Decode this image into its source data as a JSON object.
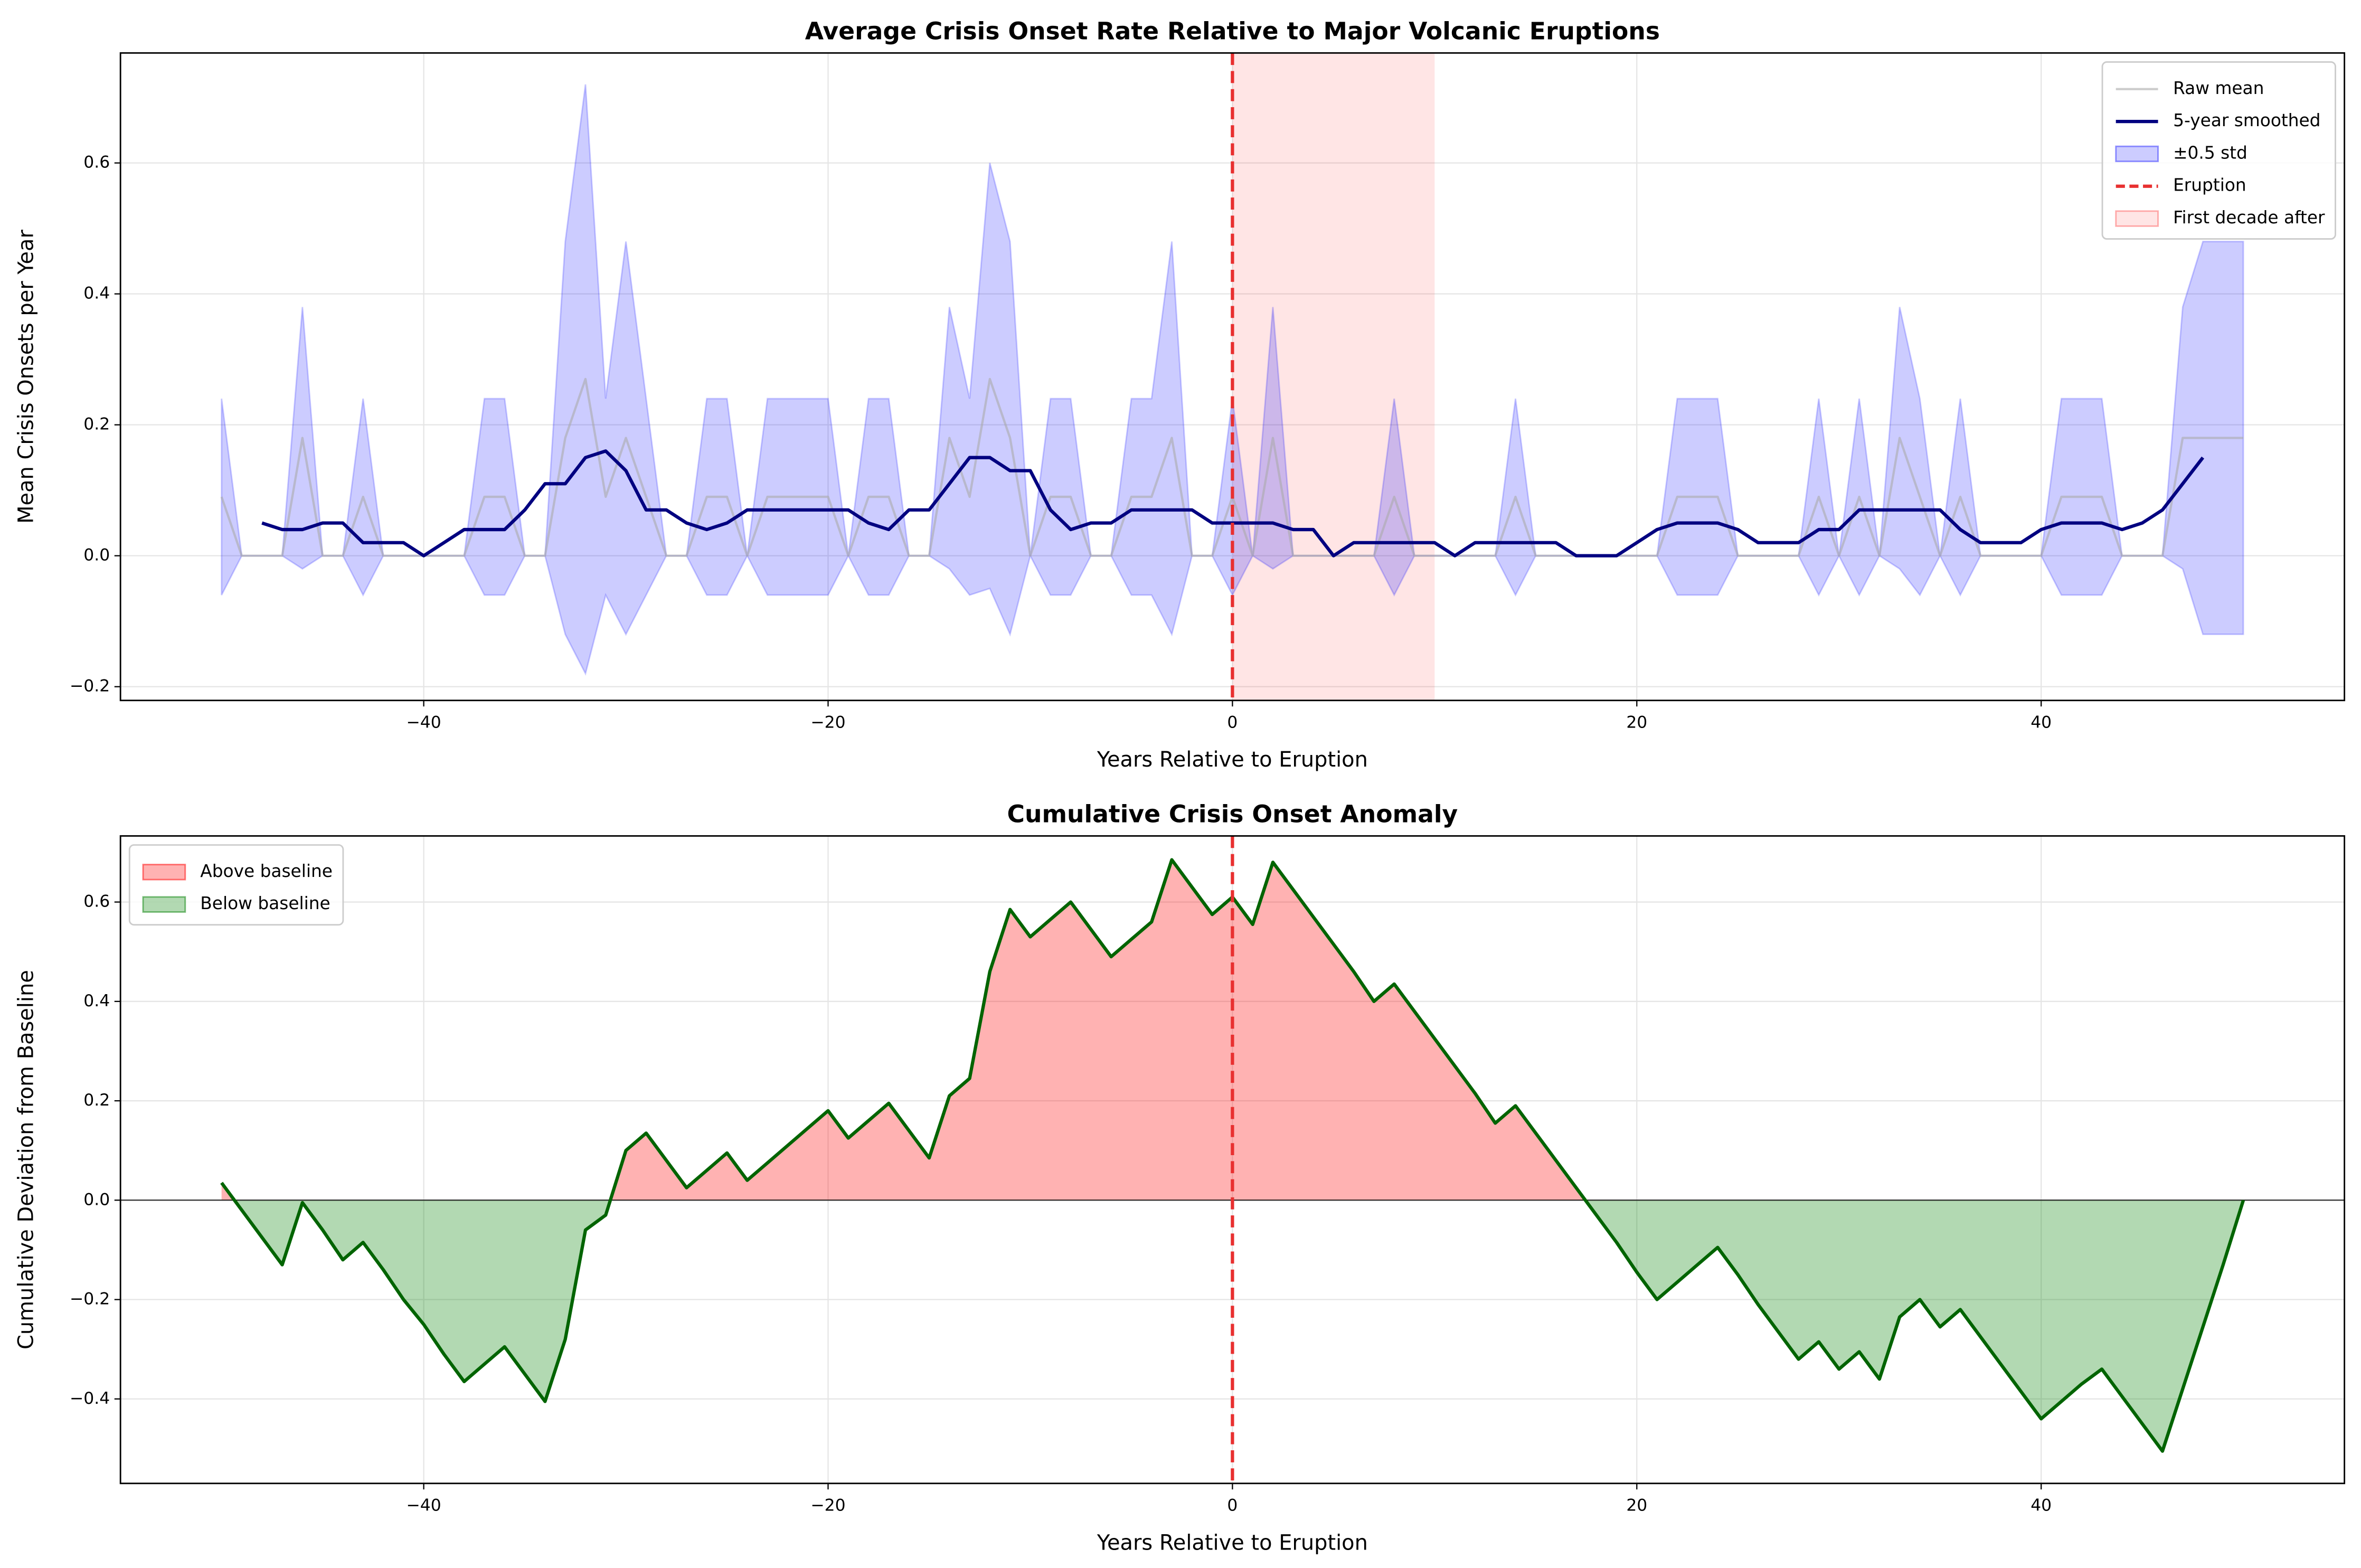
{
  "chart_data": [
    {
      "type": "line",
      "title": "Average Crisis Onset Rate Relative to Major Volcanic Eruptions",
      "xlabel": "Years Relative to Eruption",
      "ylabel": "Mean Crisis Onsets per Year",
      "x": [
        -50,
        -49,
        -48,
        -47,
        -46,
        -45,
        -44,
        -43,
        -42,
        -41,
        -40,
        -39,
        -38,
        -37,
        -36,
        -35,
        -34,
        -33,
        -32,
        -31,
        -30,
        -29,
        -28,
        -27,
        -26,
        -25,
        -24,
        -23,
        -22,
        -21,
        -20,
        -19,
        -18,
        -17,
        -16,
        -15,
        -14,
        -13,
        -12,
        -11,
        -10,
        -9,
        -8,
        -7,
        -6,
        -5,
        -4,
        -3,
        -2,
        -1,
        0,
        1,
        2,
        3,
        4,
        5,
        6,
        7,
        8,
        9,
        10,
        11,
        12,
        13,
        14,
        15,
        16,
        17,
        18,
        19,
        20,
        21,
        22,
        23,
        24,
        25,
        26,
        27,
        28,
        29,
        30,
        31,
        32,
        33,
        34,
        35,
        36,
        37,
        38,
        39,
        40,
        41,
        42,
        43,
        44,
        45,
        46,
        47,
        48,
        49,
        50
      ],
      "series": [
        {
          "name": "Raw mean",
          "color": "#aaaaaa",
          "values": [
            0.09,
            0,
            0,
            0,
            0.18,
            0,
            0,
            0.09,
            0,
            0,
            0,
            0,
            0,
            0.09,
            0.09,
            0,
            0,
            0.18,
            0.27,
            0.09,
            0.18,
            0.09,
            0,
            0,
            0.09,
            0.09,
            0,
            0.09,
            0.09,
            0.09,
            0.09,
            0,
            0.09,
            0.09,
            0,
            0,
            0.18,
            0.09,
            0.27,
            0.18,
            0,
            0.09,
            0.09,
            0,
            0,
            0.09,
            0.09,
            0.18,
            0,
            0,
            0.09,
            0,
            0.18,
            0,
            0,
            0,
            0,
            0,
            0.09,
            0,
            0,
            0,
            0,
            0,
            0.09,
            0,
            0,
            0,
            0,
            0,
            0,
            0,
            0.09,
            0.09,
            0.09,
            0,
            0,
            0,
            0,
            0.09,
            0,
            0.09,
            0,
            0.18,
            0.09,
            0,
            0.09,
            0,
            0,
            0,
            0,
            0.09,
            0.09,
            0.09,
            0,
            0,
            0,
            0.18,
            0.18,
            0.18,
            0.18
          ]
        },
        {
          "name": "5-year smoothed",
          "color": "#000080",
          "values": [
            null,
            null,
            0.05,
            0.04,
            0.04,
            0.05,
            0.05,
            0.02,
            0.02,
            0.02,
            0,
            0.02,
            0.04,
            0.04,
            0.04,
            0.07,
            0.11,
            0.11,
            0.15,
            0.16,
            0.13,
            0.07,
            0.07,
            0.05,
            0.04,
            0.05,
            0.07,
            0.07,
            0.07,
            0.07,
            0.07,
            0.07,
            0.05,
            0.04,
            0.07,
            0.07,
            0.11,
            0.15,
            0.15,
            0.13,
            0.13,
            0.07,
            0.04,
            0.05,
            0.05,
            0.07,
            0.07,
            0.07,
            0.07,
            0.05,
            0.05,
            0.05,
            0.05,
            0.04,
            0.04,
            0,
            0.02,
            0.02,
            0.02,
            0.02,
            0.02,
            0,
            0.02,
            0.02,
            0.02,
            0.02,
            0.02,
            0,
            0,
            0,
            0.02,
            0.04,
            0.05,
            0.05,
            0.05,
            0.04,
            0.02,
            0.02,
            0.02,
            0.04,
            0.04,
            0.07,
            0.07,
            0.07,
            0.07,
            0.07,
            0.04,
            0.02,
            0.02,
            0.02,
            0.04,
            0.05,
            0.05,
            0.05,
            0.04,
            0.05,
            0.07,
            0.11,
            0.15,
            null,
            null
          ]
        },
        {
          "name": "±0.5 std",
          "color": "#0000ff",
          "upper": [
            0.24,
            0,
            0,
            0,
            0.38,
            0,
            0,
            0.24,
            0,
            0,
            0,
            0,
            0,
            0.24,
            0.24,
            0,
            0,
            0.48,
            0.72,
            0.24,
            0.48,
            0.24,
            0,
            0,
            0.24,
            0.24,
            0,
            0.24,
            0.24,
            0.24,
            0.24,
            0,
            0.24,
            0.24,
            0,
            0,
            0.38,
            0.24,
            0.6,
            0.48,
            0,
            0.24,
            0.24,
            0,
            0,
            0.24,
            0.24,
            0.48,
            0,
            0,
            0.24,
            0,
            0.38,
            0,
            0,
            0,
            0,
            0,
            0.24,
            0,
            0,
            0,
            0,
            0,
            0.24,
            0,
            0,
            0,
            0,
            0,
            0,
            0,
            0.24,
            0.24,
            0.24,
            0,
            0,
            0,
            0,
            0.24,
            0,
            0.24,
            0,
            0.38,
            0.24,
            0,
            0.24,
            0,
            0,
            0,
            0,
            0.24,
            0.24,
            0.24,
            0,
            0,
            0,
            0.38,
            0.48,
            0.48,
            0.48
          ],
          "lower": [
            -0.06,
            0,
            0,
            0,
            -0.02,
            0,
            0,
            -0.06,
            0,
            0,
            0,
            0,
            0,
            -0.06,
            -0.06,
            0,
            0,
            -0.12,
            -0.18,
            -0.06,
            -0.12,
            -0.06,
            0,
            0,
            -0.06,
            -0.06,
            0,
            -0.06,
            -0.06,
            -0.06,
            -0.06,
            0,
            -0.06,
            -0.06,
            0,
            0,
            -0.02,
            -0.06,
            -0.05,
            -0.12,
            0,
            -0.06,
            -0.06,
            0,
            0,
            -0.06,
            -0.06,
            -0.12,
            0,
            0,
            -0.06,
            0,
            -0.02,
            0,
            0,
            0,
            0,
            0,
            -0.06,
            0,
            0,
            0,
            0,
            0,
            -0.06,
            0,
            0,
            0,
            0,
            0,
            0,
            0,
            -0.06,
            -0.06,
            -0.06,
            0,
            0,
            0,
            0,
            -0.06,
            0,
            -0.06,
            0,
            -0.02,
            -0.06,
            0,
            -0.06,
            0,
            0,
            0,
            0,
            -0.06,
            -0.06,
            -0.06,
            0,
            0,
            0,
            -0.02,
            -0.12,
            -0.12,
            -0.12
          ]
        }
      ],
      "vline": {
        "name": "Eruption",
        "value": 0,
        "color": "#e83030"
      },
      "span": {
        "name": "First decade after",
        "range": [
          0,
          10
        ],
        "color": "#ff0000"
      },
      "xlim": [
        -55,
        55
      ],
      "xticks": [
        {
          "value": -40,
          "label": "−40"
        },
        {
          "value": -20,
          "label": "−20"
        },
        0,
        20,
        40
      ],
      "ylim": [
        -0.221,
        0.768
      ],
      "yticks": [
        {
          "value": -0.2,
          "label": "−0.2"
        },
        {
          "value": 0,
          "label": "0.0"
        },
        0.2,
        0.4,
        0.6
      ],
      "grid": true,
      "legend": "upper right"
    },
    {
      "type": "area",
      "title": "Cumulative Crisis Onset Anomaly",
      "xlabel": "Years Relative to Eruption",
      "ylabel": "Cumulative Deviation from Baseline",
      "x": [
        -50,
        -49,
        -48,
        -47,
        -46,
        -45,
        -44,
        -43,
        -42,
        -41,
        -40,
        -39,
        -38,
        -37,
        -36,
        -35,
        -34,
        -33,
        -32,
        -31,
        -30,
        -29,
        -28,
        -27,
        -26,
        -25,
        -24,
        -23,
        -22,
        -21,
        -20,
        -19,
        -18,
        -17,
        -16,
        -15,
        -14,
        -13,
        -12,
        -11,
        -10,
        -9,
        -8,
        -7,
        -6,
        -5,
        -4,
        -3,
        -2,
        -1,
        0,
        1,
        2,
        3,
        4,
        5,
        6,
        7,
        8,
        9,
        10,
        11,
        12,
        13,
        14,
        15,
        16,
        17,
        18,
        19,
        20,
        21,
        22,
        23,
        24,
        25,
        26,
        27,
        28,
        29,
        30,
        31,
        32,
        33,
        34,
        35,
        36,
        37,
        38,
        39,
        40,
        41,
        42,
        43,
        44,
        45,
        46,
        47,
        48,
        49,
        50
      ],
      "series": [
        {
          "color": "#006400",
          "values": [
            0.035,
            -0.02,
            -0.075,
            -0.13,
            -0.005,
            -0.06,
            -0.12,
            -0.085,
            -0.14,
            -0.2,
            -0.25,
            -0.31,
            -0.365,
            -0.33,
            -0.295,
            -0.35,
            -0.405,
            -0.28,
            -0.06,
            -0.03,
            0.1,
            0.135,
            0.08,
            0.025,
            0.06,
            0.095,
            0.04,
            0.075,
            0.11,
            0.145,
            0.18,
            0.125,
            0.16,
            0.195,
            0.14,
            0.085,
            0.21,
            0.245,
            0.46,
            0.585,
            0.53,
            0.565,
            0.6,
            0.545,
            0.49,
            0.525,
            0.56,
            0.685,
            0.63,
            0.575,
            0.61,
            0.555,
            0.68,
            0.625,
            0.57,
            0.515,
            0.46,
            0.4,
            0.435,
            0.38,
            0.325,
            0.27,
            0.215,
            0.155,
            0.19,
            0.135,
            0.08,
            0.025,
            -0.03,
            -0.085,
            -0.145,
            -0.2,
            -0.165,
            -0.13,
            -0.095,
            -0.15,
            -0.21,
            -0.265,
            -0.32,
            -0.285,
            -0.34,
            -0.305,
            -0.36,
            -0.235,
            -0.2,
            -0.255,
            -0.22,
            -0.275,
            -0.33,
            -0.385,
            -0.44,
            -0.405,
            -0.37,
            -0.34,
            -0.395,
            -0.45,
            -0.505,
            -0.38,
            -0.255,
            -0.13,
            0
          ]
        }
      ],
      "fills": [
        {
          "name": "Above baseline",
          "color": "#ff0000",
          "side": "above"
        },
        {
          "name": "Below baseline",
          "color": "#008000",
          "side": "below"
        }
      ],
      "hline": 0,
      "vline": {
        "value": 0,
        "color": "#e83030"
      },
      "xlim": [
        -55,
        55
      ],
      "xticks": [
        {
          "value": -40,
          "label": "−40"
        },
        {
          "value": -20,
          "label": "−20"
        },
        0,
        20,
        40
      ],
      "ylim": [
        -0.57,
        0.733
      ],
      "yticks": [
        {
          "value": -0.4,
          "label": "−0.4"
        },
        {
          "value": -0.2,
          "label": "−0.2"
        },
        {
          "value": 0,
          "label": "0.0"
        },
        0.2,
        0.4,
        0.6
      ],
      "grid": true,
      "legend": "upper left"
    }
  ]
}
